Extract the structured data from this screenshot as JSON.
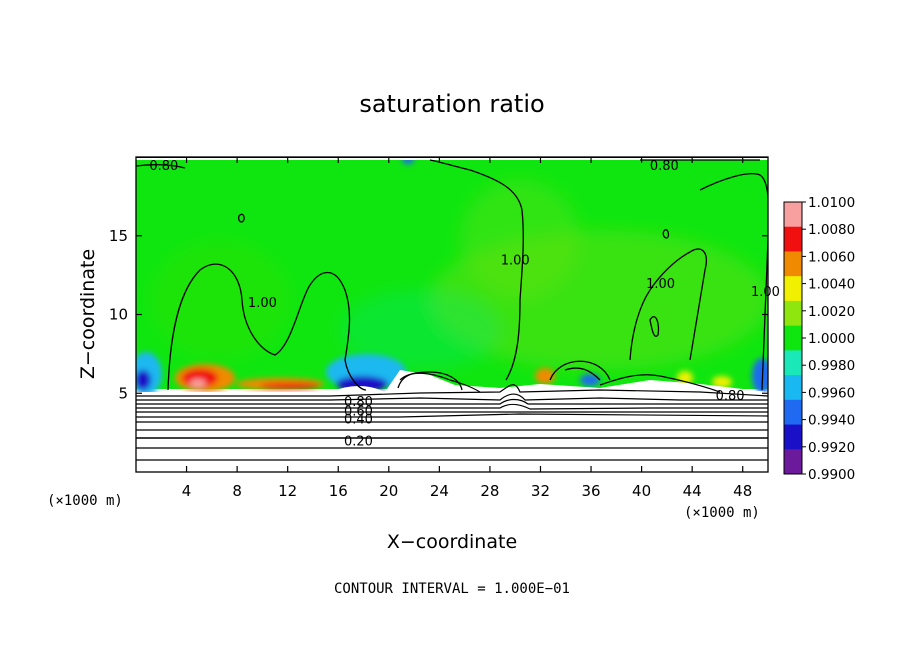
{
  "chart_data": {
    "type": "heatmap",
    "title": "saturation ratio",
    "xlabel": "X−coordinate",
    "ylabel": "Z−coordinate",
    "x_unit_left": "(×1000 m)",
    "x_unit_right": "(×1000 m)",
    "xlim": [
      0,
      50
    ],
    "ylim": [
      0,
      20
    ],
    "xticks": [
      4,
      8,
      12,
      16,
      20,
      24,
      28,
      32,
      36,
      40,
      44,
      48
    ],
    "yticks": [
      5,
      10,
      15
    ],
    "xtick_labels": [
      "4",
      "8",
      "12",
      "16",
      "20",
      "24",
      "28",
      "32",
      "36",
      "40",
      "44",
      "48"
    ],
    "ytick_labels": [
      "5",
      "10",
      "15"
    ],
    "footer_note": "CONTOUR INTERVAL = 1.000E−01",
    "colorbar": {
      "levels": [
        0.99,
        0.992,
        0.994,
        0.996,
        0.998,
        1.0,
        1.002,
        1.004,
        1.006,
        1.008,
        1.01
      ],
      "labels": [
        "1.0100",
        "1.0080",
        "1.0060",
        "1.0040",
        "1.0020",
        "1.0000",
        "0.9980",
        "0.9960",
        "0.9940",
        "0.9920",
        "0.9900"
      ],
      "colors": [
        "#6a1a9a",
        "#1a10c8",
        "#1f6af0",
        "#1ab8f0",
        "#1ae8b8",
        "#0fe60f",
        "#8fe60f",
        "#f0f000",
        "#f08a00",
        "#f01010",
        "#f8a0a0"
      ]
    },
    "contours": [
      {
        "label": "1.00",
        "x": 10.0,
        "z": 10.8
      },
      {
        "label": "1.00",
        "x": 30.0,
        "z": 13.5
      },
      {
        "label": "1.00",
        "x": 41.5,
        "z": 12.0
      },
      {
        "label": "1.00",
        "x": 49.8,
        "z": 11.5
      },
      {
        "label": "0.80",
        "x": 2.2,
        "z": 19.5
      },
      {
        "label": "0.80",
        "x": 41.8,
        "z": 19.5
      },
      {
        "label": "0.80",
        "x": 47.0,
        "z": 4.9
      },
      {
        "label": "0.80",
        "x": 17.6,
        "z": 4.5
      },
      {
        "label": "0.60",
        "x": 17.6,
        "z": 3.9
      },
      {
        "label": "0.40",
        "x": 17.6,
        "z": 3.4
      },
      {
        "label": "0.20",
        "x": 17.6,
        "z": 2.0
      }
    ]
  }
}
